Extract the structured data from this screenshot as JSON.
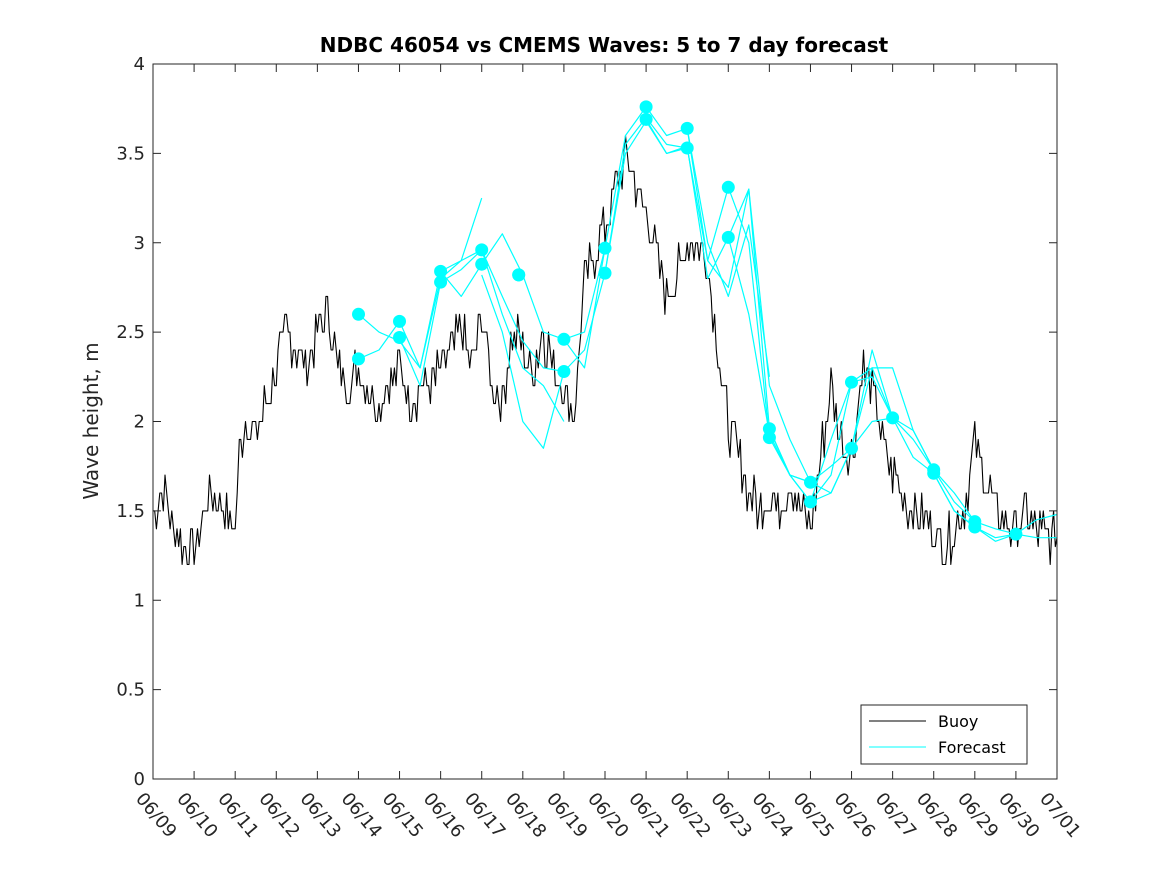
{
  "chart_data": {
    "type": "line",
    "title": "NDBC 46054 vs CMEMS Waves: 5 to 7 day forecast",
    "xlabel": "",
    "ylabel": "Wave height, m",
    "xlim": [
      "06/09",
      "07/01"
    ],
    "ylim": [
      0,
      4
    ],
    "x_tick_labels": [
      "06/09",
      "06/10",
      "06/11",
      "06/12",
      "06/13",
      "06/14",
      "06/15",
      "06/16",
      "06/17",
      "06/18",
      "06/19",
      "06/20",
      "06/21",
      "06/22",
      "06/23",
      "06/24",
      "06/25",
      "06/26",
      "06/27",
      "06/28",
      "06/29",
      "06/30",
      "07/01"
    ],
    "y_ticks": [
      0,
      0.5,
      1,
      1.5,
      2,
      2.5,
      3,
      3.5,
      4
    ],
    "y_tick_labels": [
      "0",
      "0.5",
      "1",
      "1.5",
      "2",
      "2.5",
      "3",
      "3.5",
      "4"
    ],
    "grid": false,
    "legend_position": "bottom-right",
    "colors": {
      "buoy": "#000000",
      "forecast": "#00ffff"
    },
    "buoy": {
      "name": "Buoy",
      "day_offset": [
        0,
        0.25,
        0.5,
        0.75,
        1,
        1.25,
        1.5,
        1.75,
        2,
        2.1,
        2.25,
        2.5,
        2.75,
        3,
        3.25,
        3.5,
        3.75,
        4,
        4.25,
        4.5,
        4.75,
        5,
        5.25,
        5.5,
        5.75,
        6,
        6.25,
        6.5,
        6.75,
        7,
        7.25,
        7.5,
        7.75,
        8,
        8.25,
        8.5,
        8.75,
        9,
        9.25,
        9.5,
        9.75,
        10,
        10.25,
        10.5,
        10.75,
        11,
        11.25,
        11.5,
        11.75,
        12,
        12.25,
        12.5,
        12.75,
        13,
        13.25,
        13.5,
        13.75,
        14,
        14.25,
        14.5,
        14.75,
        15,
        15.25,
        15.5,
        15.75,
        16,
        16.25,
        16.5,
        16.75,
        17,
        17.25,
        17.5,
        17.75,
        18,
        18.25,
        18.5,
        18.75,
        19,
        19.25,
        19.5,
        19.75,
        20,
        20.25,
        20.5,
        20.75,
        21,
        21.25,
        21.5,
        21.75,
        22
      ],
      "height": [
        1.5,
        1.6,
        1.4,
        1.3,
        1.25,
        1.5,
        1.6,
        1.5,
        1.4,
        1.8,
        2.0,
        1.9,
        2.1,
        2.3,
        2.5,
        2.4,
        2.3,
        2.5,
        2.6,
        2.3,
        2.2,
        2.3,
        2.2,
        2.1,
        2.2,
        2.3,
        2.1,
        2.2,
        2.2,
        2.3,
        2.4,
        2.5,
        2.3,
        2.6,
        2.2,
        2.1,
        2.5,
        2.4,
        2.3,
        2.5,
        2.3,
        2.2,
        2.0,
        2.8,
        2.9,
        3.1,
        3.3,
        3.5,
        3.3,
        3.2,
        2.9,
        2.7,
        2.8,
        3.0,
        3.0,
        2.9,
        2.4,
        2.0,
        1.8,
        1.6,
        1.5,
        1.6,
        1.5,
        1.7,
        1.5,
        1.4,
        1.8,
        2.2,
        1.9,
        1.8,
        2.3,
        2.2,
        1.9,
        1.7,
        1.6,
        1.5,
        1.5,
        1.4,
        1.3,
        1.4,
        1.5,
        1.9,
        1.7,
        1.5,
        1.4,
        1.4,
        1.5,
        1.4,
        1.35,
        1.35
      ]
    },
    "forecast": {
      "name": "Forecast",
      "series": [
        {
          "day_offset": [
            5,
            5.5,
            6,
            6.5,
            7,
            7.5,
            8
          ],
          "height": [
            2.6,
            2.5,
            2.45,
            2.3,
            2.8,
            2.9,
            3.25
          ]
        },
        {
          "day_offset": [
            5,
            5.5,
            6,
            6.5,
            7,
            7.5,
            8,
            8.5,
            9,
            9.5,
            10
          ],
          "height": [
            2.35,
            2.4,
            2.56,
            2.3,
            2.84,
            2.9,
            2.96,
            2.6,
            2.3,
            2.2,
            2.0
          ]
        },
        {
          "day_offset": [
            6,
            6.5,
            7,
            7.5,
            8,
            8.5,
            9,
            9.5,
            10
          ],
          "height": [
            2.47,
            2.2,
            2.78,
            2.85,
            2.96,
            2.7,
            2.45,
            2.3,
            2.28
          ]
        },
        {
          "day_offset": [
            7,
            7.5,
            8,
            8.5,
            9,
            9.5,
            10,
            10.5,
            11
          ],
          "height": [
            2.84,
            2.7,
            2.88,
            3.05,
            2.82,
            2.5,
            2.46,
            2.5,
            2.97
          ]
        },
        {
          "day_offset": [
            8,
            8.5,
            9,
            9.5,
            10,
            10.5,
            11,
            11.5,
            12,
            12.5,
            13
          ],
          "height": [
            2.82,
            2.5,
            2.0,
            1.85,
            2.28,
            2.4,
            2.83,
            3.5,
            3.68,
            3.5,
            3.53
          ]
        },
        {
          "day_offset": [
            10,
            10.5,
            11,
            11.5,
            12,
            12.5,
            13,
            13.5,
            14,
            14.5,
            15
          ],
          "height": [
            2.46,
            2.3,
            2.97,
            3.6,
            3.76,
            3.6,
            3.64,
            3.0,
            2.7,
            3.1,
            2.25
          ]
        },
        {
          "day_offset": [
            11,
            11.5,
            12,
            12.5,
            13,
            13.5,
            14,
            14.5,
            15,
            15.5,
            16
          ],
          "height": [
            2.83,
            3.55,
            3.7,
            3.55,
            3.53,
            2.9,
            2.75,
            3.3,
            2.2,
            1.9,
            1.66
          ]
        },
        {
          "day_offset": [
            12,
            12.5,
            13,
            13.5,
            14,
            14.5,
            15,
            15.5,
            16,
            16.5,
            17
          ],
          "height": [
            3.69,
            3.5,
            3.54,
            2.8,
            3.03,
            3.3,
            1.96,
            1.7,
            1.55,
            1.7,
            2.22
          ]
        },
        {
          "day_offset": [
            13,
            13.5,
            14,
            14.5,
            15,
            15.5,
            16,
            16.5,
            17,
            17.5,
            18
          ],
          "height": [
            3.64,
            2.9,
            3.31,
            3.0,
            1.91,
            1.7,
            1.66,
            1.6,
            1.85,
            2.0,
            2.02
          ]
        },
        {
          "day_offset": [
            14,
            14.5,
            15,
            15.5,
            16,
            16.5,
            17,
            17.5,
            18,
            18.5,
            19
          ],
          "height": [
            3.03,
            2.6,
            1.93,
            1.7,
            1.55,
            1.9,
            2.22,
            2.3,
            2.02,
            1.9,
            1.73
          ]
        },
        {
          "day_offset": [
            15,
            15.5,
            16,
            16.5,
            17,
            17.5,
            18,
            18.5,
            19,
            19.5,
            20
          ],
          "height": [
            1.96,
            1.7,
            1.66,
            1.75,
            1.85,
            2.3,
            2.3,
            1.95,
            1.73,
            1.55,
            1.44
          ]
        },
        {
          "day_offset": [
            16,
            16.5,
            17,
            17.5,
            18,
            18.5,
            19,
            19.5,
            20,
            20.5,
            21
          ],
          "height": [
            1.55,
            1.6,
            1.85,
            2.4,
            2.02,
            1.8,
            1.71,
            1.5,
            1.41,
            1.35,
            1.37
          ]
        },
        {
          "day_offset": [
            17,
            17.5,
            18,
            18.5,
            19,
            19.5,
            20,
            20.5,
            21,
            21.5,
            22
          ],
          "height": [
            2.22,
            2.25,
            2.02,
            1.95,
            1.73,
            1.6,
            1.44,
            1.4,
            1.37,
            1.45,
            1.48
          ]
        },
        {
          "day_offset": [
            19,
            19.5,
            20,
            20.5,
            21,
            21.5,
            22
          ],
          "height": [
            1.71,
            1.5,
            1.41,
            1.33,
            1.37,
            1.35,
            1.35
          ]
        }
      ],
      "markers": {
        "day_offset": [
          5,
          5,
          6,
          6,
          7,
          7,
          8,
          8,
          8.9,
          8.9,
          10,
          10,
          11,
          11,
          12,
          12,
          13,
          13,
          14,
          14,
          15,
          15,
          16,
          16,
          17,
          17,
          18,
          19,
          19,
          20,
          20,
          21
        ],
        "height": [
          2.6,
          2.35,
          2.56,
          2.47,
          2.84,
          2.78,
          2.96,
          2.88,
          2.82,
          2.82,
          2.46,
          2.28,
          2.97,
          2.83,
          3.76,
          3.69,
          3.64,
          3.53,
          3.31,
          3.03,
          1.96,
          1.91,
          1.66,
          1.55,
          2.22,
          1.85,
          2.02,
          1.73,
          1.71,
          1.44,
          1.41,
          1.37
        ]
      }
    }
  }
}
